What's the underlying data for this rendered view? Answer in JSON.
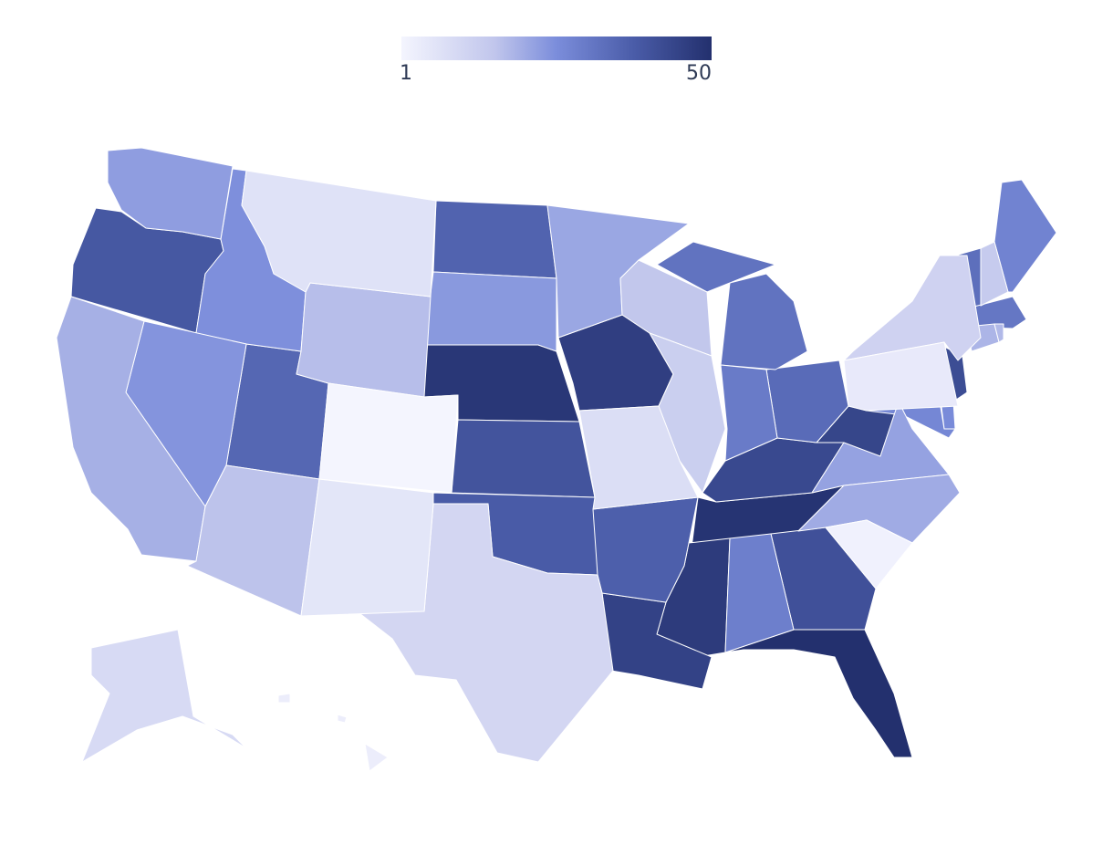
{
  "legend": {
    "min_label": "1",
    "max_label": "50",
    "min": 1,
    "max": 50,
    "colors": [
      "#f4f5fe",
      "#c1c6ec",
      "#7b8ddb",
      "#4a5ca8",
      "#23306e"
    ]
  },
  "chart_data": {
    "type": "choropleth",
    "region": "USA states",
    "values": {
      "FL": 50,
      "TN": 49,
      "NE": 48,
      "MS": 47,
      "IA": 46,
      "LA": 45,
      "WV": 44,
      "KY": 43,
      "NJ": 42,
      "GA": 41,
      "KS": 40,
      "OR": 39,
      "OK": 38,
      "AR": 37,
      "ND": 36,
      "UT": 35,
      "OH": 34,
      "VT": 33,
      "MI": 32,
      "MA": 31,
      "IN": 30,
      "AL": 29,
      "ME": 28,
      "MD": 27,
      "DE": 26,
      "ID": 25,
      "NV": 24,
      "SD": 23,
      "WA": 22,
      "VA": 21,
      "MN": 20,
      "NC": 19,
      "CA": 18,
      "CT": 17,
      "RI": 16,
      "WY": 15,
      "AZ": 14,
      "WI": 13,
      "NH": 12,
      "IL": 11,
      "NY": 10,
      "TX": 9,
      "AK": 8,
      "MO": 7,
      "MT": 6,
      "NM": 5,
      "PA": 4,
      "HI": 3,
      "SC": 2,
      "CO": 1
    }
  }
}
